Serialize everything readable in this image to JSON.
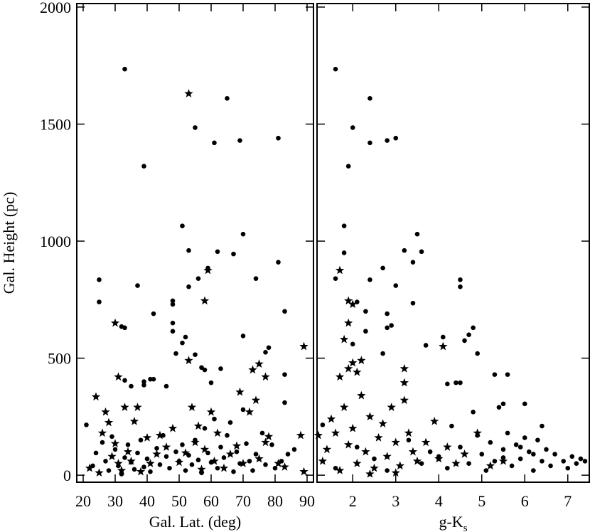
{
  "chart_data": [
    {
      "type": "scatter",
      "xlabel": "Gal. Lat. (deg)",
      "ylabel": "Gal. Height (pc)",
      "xlim": [
        18,
        92
      ],
      "xticks": [
        20,
        30,
        40,
        50,
        60,
        70,
        80,
        90
      ],
      "ylim": [
        -30,
        2015
      ],
      "yticks": [
        0,
        500,
        1000,
        1500,
        2000
      ],
      "ytick_labels": true,
      "series": [
        {
          "marker": "circle",
          "color": "#000000",
          "x": [
            33,
            65,
            55,
            61,
            69,
            81,
            39,
            51,
            53,
            70,
            67,
            62,
            81,
            59,
            25,
            37,
            56,
            74,
            53,
            25,
            48,
            48,
            42,
            83,
            48,
            48,
            32,
            33,
            70,
            52,
            51,
            78,
            77,
            49,
            55,
            57,
            58,
            63,
            83,
            33,
            39,
            41,
            42,
            35,
            39,
            46,
            60,
            21,
            23,
            24,
            26,
            27,
            28,
            29,
            30,
            31,
            32,
            33,
            34,
            35,
            36,
            37,
            38,
            39,
            40,
            41,
            43,
            44,
            45,
            46,
            47,
            49,
            50,
            51,
            52,
            53,
            54,
            55,
            56,
            57,
            58,
            59,
            60,
            61,
            62,
            63,
            64,
            65,
            66,
            67,
            68,
            69,
            70,
            71,
            72,
            73,
            74,
            76,
            77,
            79,
            80,
            82,
            83,
            84,
            86
          ],
          "values": [
            1735,
            1610,
            1485,
            1420,
            1430,
            1440,
            1320,
            1065,
            960,
            1030,
            945,
            955,
            910,
            885,
            835,
            810,
            840,
            840,
            805,
            740,
            745,
            730,
            690,
            700,
            650,
            615,
            635,
            630,
            595,
            590,
            565,
            545,
            525,
            520,
            515,
            460,
            450,
            455,
            430,
            405,
            400,
            410,
            410,
            380,
            385,
            380,
            395,
            215,
            40,
            95,
            140,
            60,
            20,
            165,
            110,
            40,
            5,
            75,
            130,
            55,
            25,
            95,
            150,
            35,
            70,
            15,
            115,
            45,
            170,
            80,
            30,
            100,
            60,
            130,
            20,
            85,
            45,
            150,
            65,
            10,
            200,
            95,
            55,
            240,
            30,
            120,
            75,
            170,
            225,
            15,
            100,
            50,
            280,
            135,
            60,
            20,
            90,
            180,
            45,
            130,
            30,
            60,
            310,
            90,
            110
          ]
        },
        {
          "marker": "star",
          "color": "#000000",
          "x": [
            53,
            59,
            58,
            30,
            31,
            89,
            73,
            75,
            69,
            53,
            77,
            22,
            24,
            25,
            26,
            27,
            28,
            29,
            30,
            31,
            32,
            33,
            34,
            35,
            36,
            37,
            38,
            40,
            41,
            43,
            44,
            46,
            48,
            50,
            52,
            54,
            55,
            56,
            57,
            58,
            60,
            61,
            62,
            64,
            66,
            68,
            70,
            72,
            74,
            75,
            77,
            78,
            81,
            83,
            88,
            89
          ],
          "values": [
            1630,
            875,
            745,
            650,
            420,
            550,
            450,
            475,
            355,
            490,
            420,
            30,
            335,
            10,
            180,
            270,
            225,
            80,
            135,
            50,
            20,
            290,
            100,
            60,
            230,
            290,
            15,
            160,
            50,
            90,
            170,
            120,
            200,
            55,
            95,
            290,
            140,
            210,
            25,
            110,
            270,
            60,
            180,
            30,
            90,
            125,
            50,
            270,
            320,
            70,
            140,
            165,
            50,
            35,
            170,
            15
          ]
        }
      ]
    },
    {
      "type": "scatter",
      "xlabel": "g-K",
      "xlabel_subscript": "s",
      "xlim": [
        1.17,
        7.5
      ],
      "xticks": [
        2,
        3,
        4,
        5,
        6,
        7
      ],
      "ylim": [
        -30,
        2015
      ],
      "yticks": [
        0,
        500,
        1000,
        1500,
        2000
      ],
      "ytick_labels": false,
      "series": [
        {
          "marker": "circle",
          "color": "#000000",
          "x": [
            1.6,
            2.4,
            2.0,
            2.4,
            2.8,
            3.0,
            1.9,
            1.8,
            1.8,
            3.5,
            3.2,
            3.6,
            3.4,
            2.7,
            4.5,
            2.4,
            1.6,
            4.5,
            3.0,
            2.1,
            2.3,
            2.8,
            2.9,
            2.8,
            3.4,
            4.8,
            4.7,
            2.3,
            4.1,
            4.6,
            2.7,
            3.7,
            2.0,
            5.6,
            5.3,
            4.9,
            4.8,
            6.0,
            5.5,
            4.4,
            4.5,
            4.2,
            1.3,
            1.6,
            2.1,
            2.5,
            2.8,
            3.3,
            3.6,
            3.8,
            4.0,
            4.2,
            4.3,
            4.5,
            4.7,
            4.9,
            5.0,
            5.1,
            5.2,
            5.3,
            5.4,
            5.5,
            5.6,
            5.7,
            5.8,
            5.9,
            6.0,
            6.1,
            6.2,
            6.3,
            6.4,
            6.5,
            6.6,
            6.7,
            6.9,
            7.0,
            7.1,
            7.2,
            7.3,
            7.4,
            6.4,
            5.9,
            6.2,
            5.5
          ],
          "values": [
            1735,
            1610,
            1485,
            1420,
            1430,
            1440,
            1320,
            1065,
            950,
            1030,
            960,
            955,
            910,
            885,
            835,
            835,
            840,
            805,
            810,
            740,
            700,
            690,
            640,
            630,
            735,
            630,
            600,
            615,
            590,
            575,
            520,
            555,
            560,
            430,
            430,
            520,
            270,
            305,
            305,
            395,
            395,
            390,
            215,
            30,
            120,
            70,
            20,
            150,
            50,
            100,
            80,
            30,
            210,
            120,
            50,
            170,
            90,
            20,
            140,
            60,
            290,
            110,
            180,
            40,
            130,
            70,
            160,
            100,
            20,
            150,
            60,
            110,
            40,
            90,
            60,
            30,
            80,
            50,
            70,
            60,
            210,
            120,
            90,
            75
          ]
        },
        {
          "marker": "star",
          "color": "#000000",
          "x": [
            1.7,
            1.9,
            2.0,
            1.9,
            1.8,
            4.1,
            3.2,
            2.2,
            2.0,
            1.9,
            1.7,
            3.2,
            2.1,
            1.2,
            1.3,
            1.4,
            1.5,
            1.6,
            1.7,
            1.8,
            1.9,
            2.0,
            2.1,
            2.2,
            2.3,
            2.4,
            2.5,
            2.6,
            2.7,
            2.8,
            2.9,
            3.0,
            3.1,
            3.2,
            3.3,
            3.4,
            3.5,
            3.7,
            3.9,
            4.0,
            4.2,
            4.4,
            4.6,
            4.9,
            5.2,
            5.5,
            3.0,
            2.4
          ],
          "values": [
            875,
            745,
            730,
            650,
            580,
            550,
            455,
            490,
            480,
            455,
            420,
            395,
            440,
            170,
            60,
            110,
            240,
            180,
            20,
            290,
            130,
            200,
            50,
            340,
            100,
            250,
            30,
            160,
            220,
            80,
            290,
            140,
            40,
            320,
            180,
            100,
            60,
            140,
            230,
            70,
            120,
            50,
            90,
            180,
            40,
            60,
            10,
            5
          ]
        }
      ]
    }
  ]
}
